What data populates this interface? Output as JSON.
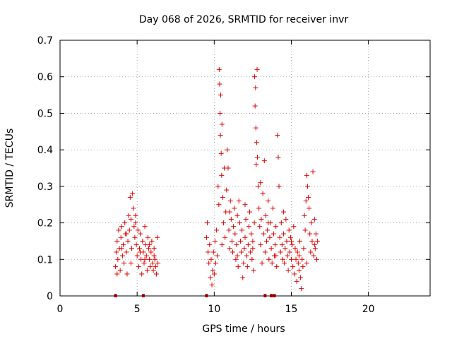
{
  "chart_data": {
    "type": "scatter",
    "title": "Day 068 of 2026, SRMTID for receiver invr",
    "xlabel": "GPS time / hours",
    "ylabel": "SRMTID / TECUs",
    "xlim": [
      0,
      24
    ],
    "ylim": [
      0,
      0.7
    ],
    "x_ticks": [
      0,
      5,
      10,
      15,
      20
    ],
    "y_ticks": [
      0,
      0.1,
      0.2,
      0.3,
      0.4,
      0.5,
      0.6,
      0.7
    ],
    "x_tick_labels": [
      "0",
      "5",
      "10",
      "15",
      "20"
    ],
    "y_tick_labels": [
      "0",
      "0.1",
      "0.2",
      "0.3",
      "0.4",
      "0.5",
      "0.6",
      "0.7"
    ],
    "grid": true,
    "marker": "+",
    "color": "#e00000",
    "series": [
      {
        "name": "SRMTID",
        "points": [
          [
            3.6,
            0.08
          ],
          [
            3.65,
            0.12
          ],
          [
            3.7,
            0.15
          ],
          [
            3.75,
            0.1
          ],
          [
            3.8,
            0.18
          ],
          [
            3.85,
            0.13
          ],
          [
            3.9,
            0.07
          ],
          [
            3.95,
            0.16
          ],
          [
            4.0,
            0.19
          ],
          [
            4.05,
            0.11
          ],
          [
            4.1,
            0.14
          ],
          [
            4.15,
            0.09
          ],
          [
            4.2,
            0.2
          ],
          [
            4.25,
            0.17
          ],
          [
            4.3,
            0.12
          ],
          [
            4.35,
            0.06
          ],
          [
            4.4,
            0.15
          ],
          [
            4.45,
            0.22
          ],
          [
            4.5,
            0.18
          ],
          [
            4.55,
            0.27
          ],
          [
            4.6,
            0.21
          ],
          [
            4.65,
            0.13
          ],
          [
            4.7,
            0.28
          ],
          [
            4.75,
            0.24
          ],
          [
            4.8,
            0.19
          ],
          [
            4.85,
            0.16
          ],
          [
            4.9,
            0.22
          ],
          [
            4.95,
            0.14
          ],
          [
            5.0,
            0.11
          ],
          [
            5.05,
            0.18
          ],
          [
            5.1,
            0.08
          ],
          [
            5.15,
            0.13
          ],
          [
            5.2,
            0.17
          ],
          [
            5.25,
            0.1
          ],
          [
            5.3,
            0.06
          ],
          [
            5.35,
            0.15
          ],
          [
            5.4,
            0.12
          ],
          [
            5.45,
            0.09
          ],
          [
            5.5,
            0.19
          ],
          [
            5.55,
            0.14
          ],
          [
            5.6,
            0.11
          ],
          [
            5.65,
            0.07
          ],
          [
            5.7,
            0.16
          ],
          [
            5.75,
            0.13
          ],
          [
            5.8,
            0.1
          ],
          [
            5.85,
            0.08
          ],
          [
            5.9,
            0.12
          ],
          [
            5.95,
            0.15
          ],
          [
            6.0,
            0.09
          ],
          [
            6.05,
            0.07
          ],
          [
            6.1,
            0.13
          ],
          [
            6.15,
            0.1
          ],
          [
            6.2,
            0.08
          ],
          [
            6.25,
            0.06
          ],
          [
            6.3,
            0.16
          ],
          [
            6.35,
            0.09
          ],
          [
            3.7,
            0.06
          ],
          [
            4.0,
            0.13
          ],
          [
            4.3,
            0.17
          ],
          [
            4.6,
            0.09
          ],
          [
            4.9,
            0.2
          ],
          [
            5.2,
            0.12
          ],
          [
            5.5,
            0.1
          ],
          [
            5.8,
            0.14
          ],
          [
            6.1,
            0.11
          ],
          [
            9.5,
            0.16
          ],
          [
            9.55,
            0.2
          ],
          [
            9.6,
            0.12
          ],
          [
            9.65,
            0.09
          ],
          [
            9.7,
            0.14
          ],
          [
            9.75,
            0.05
          ],
          [
            9.8,
            0.1
          ],
          [
            9.85,
            0.03
          ],
          [
            9.9,
            0.07
          ],
          [
            9.95,
            0.12
          ],
          [
            10.0,
            0.06
          ],
          [
            10.05,
            0.15
          ],
          [
            10.1,
            0.09
          ],
          [
            10.15,
            0.18
          ],
          [
            10.2,
            0.11
          ],
          [
            10.25,
            0.3
          ],
          [
            10.3,
            0.25
          ],
          [
            10.32,
            0.62
          ],
          [
            10.35,
            0.58
          ],
          [
            10.38,
            0.5
          ],
          [
            10.4,
            0.44
          ],
          [
            10.42,
            0.55
          ],
          [
            10.45,
            0.39
          ],
          [
            10.48,
            0.33
          ],
          [
            10.5,
            0.47
          ],
          [
            10.55,
            0.27
          ],
          [
            10.6,
            0.2
          ],
          [
            10.65,
            0.35
          ],
          [
            10.7,
            0.16
          ],
          [
            10.75,
            0.23
          ],
          [
            10.8,
            0.29
          ],
          [
            10.85,
            0.4
          ],
          [
            10.9,
            0.35
          ],
          [
            10.95,
            0.18
          ],
          [
            11.0,
            0.13
          ],
          [
            11.05,
            0.26
          ],
          [
            11.1,
            0.21
          ],
          [
            11.15,
            0.15
          ],
          [
            11.2,
            0.12
          ],
          [
            11.25,
            0.19
          ],
          [
            11.3,
            0.24
          ],
          [
            11.35,
            0.17
          ],
          [
            11.4,
            0.1
          ],
          [
            11.45,
            0.14
          ],
          [
            11.5,
            0.22
          ],
          [
            11.55,
            0.08
          ],
          [
            11.6,
            0.26
          ],
          [
            11.65,
            0.2
          ],
          [
            11.7,
            0.15
          ],
          [
            11.75,
            0.12
          ],
          [
            11.8,
            0.18
          ],
          [
            11.85,
            0.05
          ],
          [
            11.9,
            0.09
          ],
          [
            11.95,
            0.13
          ],
          [
            12.0,
            0.16
          ],
          [
            12.05,
            0.21
          ],
          [
            12.1,
            0.11
          ],
          [
            12.15,
            0.08
          ],
          [
            12.2,
            0.14
          ],
          [
            12.25,
            0.19
          ],
          [
            12.3,
            0.23
          ],
          [
            12.35,
            0.12
          ],
          [
            12.4,
            0.17
          ],
          [
            12.45,
            0.1
          ],
          [
            12.5,
            0.15
          ],
          [
            12.55,
            0.07
          ],
          [
            12.6,
            0.2
          ],
          [
            12.62,
            0.6
          ],
          [
            12.65,
            0.52
          ],
          [
            12.68,
            0.57
          ],
          [
            12.7,
            0.46
          ],
          [
            12.72,
            0.36
          ],
          [
            12.75,
            0.42
          ],
          [
            12.78,
            0.62
          ],
          [
            12.8,
            0.38
          ],
          [
            12.85,
            0.3
          ],
          [
            12.9,
            0.24
          ],
          [
            12.95,
            0.19
          ],
          [
            13.0,
            0.14
          ],
          [
            13.05,
            0.21
          ],
          [
            13.1,
            0.09
          ],
          [
            13.15,
            0.28
          ],
          [
            13.2,
            0.17
          ],
          [
            13.25,
            0.37
          ],
          [
            13.3,
            0.12
          ],
          [
            13.35,
            0.22
          ],
          [
            13.4,
            0.15
          ],
          [
            13.45,
            0.18
          ],
          [
            13.5,
            0.26
          ],
          [
            13.55,
            0.1
          ],
          [
            13.6,
            0.16
          ],
          [
            13.65,
            0.2
          ],
          [
            13.7,
            0.13
          ],
          [
            13.75,
            0.09
          ],
          [
            13.8,
            0.24
          ],
          [
            13.85,
            0.17
          ],
          [
            13.9,
            0.11
          ],
          [
            13.95,
            0.14
          ],
          [
            14.0,
            0.19
          ],
          [
            14.05,
            0.08
          ],
          [
            14.1,
            0.44
          ],
          [
            14.15,
            0.38
          ],
          [
            14.2,
            0.3
          ],
          [
            14.25,
            0.16
          ],
          [
            14.3,
            0.12
          ],
          [
            14.35,
            0.2
          ],
          [
            14.4,
            0.14
          ],
          [
            14.45,
            0.1
          ],
          [
            14.5,
            0.17
          ],
          [
            14.55,
            0.09
          ],
          [
            14.6,
            0.13
          ],
          [
            14.65,
            0.21
          ],
          [
            14.7,
            0.15
          ],
          [
            14.75,
            0.11
          ],
          [
            14.8,
            0.07
          ],
          [
            14.85,
            0.18
          ],
          [
            14.9,
            0.12
          ],
          [
            14.95,
            0.16
          ],
          [
            15.0,
            0.1
          ],
          [
            15.05,
            0.14
          ],
          [
            15.1,
            0.08
          ],
          [
            15.15,
            0.19
          ],
          [
            15.2,
            0.06
          ],
          [
            15.25,
            0.13
          ],
          [
            15.3,
            0.1
          ],
          [
            15.35,
            0.04
          ],
          [
            15.4,
            0.12
          ],
          [
            15.45,
            0.09
          ],
          [
            15.5,
            0.07
          ],
          [
            15.55,
            0.15
          ],
          [
            15.6,
            0.05
          ],
          [
            15.65,
            0.02
          ],
          [
            15.7,
            0.1
          ],
          [
            15.75,
            0.08
          ],
          [
            15.8,
            0.13
          ],
          [
            15.85,
            0.22
          ],
          [
            15.9,
            0.18
          ],
          [
            15.95,
            0.26
          ],
          [
            16.0,
            0.33
          ],
          [
            16.05,
            0.3
          ],
          [
            16.1,
            0.27
          ],
          [
            16.15,
            0.24
          ],
          [
            16.2,
            0.17
          ],
          [
            16.25,
            0.12
          ],
          [
            16.3,
            0.2
          ],
          [
            16.35,
            0.15
          ],
          [
            16.4,
            0.34
          ],
          [
            16.45,
            0.11
          ],
          [
            16.5,
            0.21
          ],
          [
            16.55,
            0.13
          ],
          [
            16.6,
            0.17
          ],
          [
            16.65,
            0.1
          ],
          [
            16.7,
            0.15
          ],
          [
            10.5,
            0.14
          ],
          [
            11.0,
            0.23
          ],
          [
            11.5,
            0.11
          ],
          [
            12.0,
            0.25
          ],
          [
            12.5,
            0.13
          ],
          [
            13.0,
            0.31
          ],
          [
            13.5,
            0.2
          ],
          [
            14.0,
            0.11
          ],
          [
            14.5,
            0.23
          ],
          [
            15.0,
            0.15
          ],
          [
            15.5,
            0.11
          ],
          [
            16.0,
            0.09
          ],
          [
            16.5,
            0.14
          ]
        ]
      }
    ],
    "gap_markers_x": [
      3.6,
      5.4,
      9.5,
      13.3,
      13.7,
      13.9
    ]
  }
}
